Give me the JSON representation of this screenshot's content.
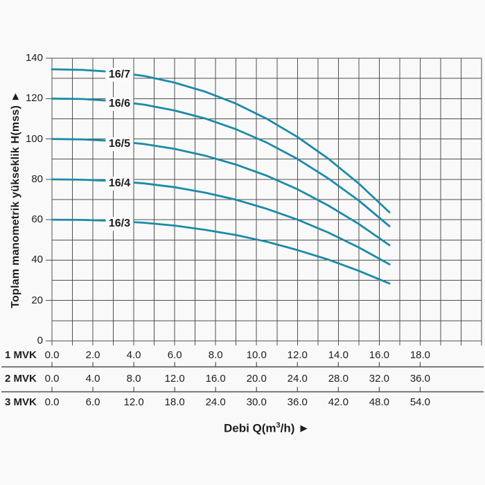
{
  "y_axis": {
    "title": "Toplam manometrik yükseklik H(mss) ►",
    "tick_labels": [
      "0",
      "20",
      "40",
      "60",
      "80",
      "100",
      "120",
      "140"
    ]
  },
  "x_axis": {
    "label_prefix": "Debi Q(m",
    "label_sup": "3",
    "label_suffix": "/h) ►"
  },
  "colors": {
    "curve": "#1b8aa8",
    "grid": "#4e4e4e",
    "text": "#1d1d1d",
    "background": "#f9f9f9"
  },
  "chart_data": {
    "type": "line",
    "title": "",
    "xlabel": "Debi Q(m3/h)",
    "ylabel": "Toplam manometrik yükseklik H(mss)",
    "grid": "on",
    "ylim": [
      0,
      140
    ],
    "y_gridline_step": 10,
    "y_label_step": 20,
    "x_grid_range": [
      0,
      21
    ],
    "x_gridline_step": 1,
    "x_major_tick_values": [
      0,
      2,
      4,
      6,
      8,
      10,
      12,
      14,
      16,
      18
    ],
    "legend_position": "labels-on-curves",
    "series": [
      {
        "name": "16/7",
        "label_q": 3.3,
        "label_h": 131.8,
        "points": [
          [
            0,
            134.5
          ],
          [
            1.5,
            134.2
          ],
          [
            3,
            133.2
          ],
          [
            4.5,
            131.2
          ],
          [
            6,
            127.9
          ],
          [
            7.5,
            123.4
          ],
          [
            9,
            117.5
          ],
          [
            10.5,
            110.0
          ],
          [
            12,
            101.0
          ],
          [
            13.5,
            90.3
          ],
          [
            15,
            77.9
          ],
          [
            16.5,
            63.7
          ]
        ]
      },
      {
        "name": "16/6",
        "label_q": 3.3,
        "label_h": 117.4,
        "points": [
          [
            0,
            120.0
          ],
          [
            1.5,
            119.8
          ],
          [
            3,
            118.8
          ],
          [
            4.5,
            117.0
          ],
          [
            6,
            114.1
          ],
          [
            7.5,
            110.1
          ],
          [
            9,
            104.8
          ],
          [
            10.5,
            98.2
          ],
          [
            12,
            90.1
          ],
          [
            13.5,
            80.5
          ],
          [
            15,
            69.5
          ],
          [
            16.5,
            56.8
          ]
        ]
      },
      {
        "name": "16/5",
        "label_q": 3.3,
        "label_h": 97.6,
        "points": [
          [
            0,
            100.0
          ],
          [
            1.5,
            99.8
          ],
          [
            3,
            99.0
          ],
          [
            4.5,
            97.5
          ],
          [
            6,
            95.1
          ],
          [
            7.5,
            91.7
          ],
          [
            9,
            87.3
          ],
          [
            10.5,
            81.8
          ],
          [
            12,
            75.1
          ],
          [
            13.5,
            67.1
          ],
          [
            15,
            57.9
          ],
          [
            16.5,
            47.4
          ]
        ]
      },
      {
        "name": "16/4",
        "label_q": 3.3,
        "label_h": 77.8,
        "points": [
          [
            0,
            80.0
          ],
          [
            1.5,
            79.8
          ],
          [
            3,
            79.2
          ],
          [
            4.5,
            78.0
          ],
          [
            6,
            76.1
          ],
          [
            7.5,
            73.4
          ],
          [
            9,
            69.9
          ],
          [
            10.5,
            65.4
          ],
          [
            12,
            60.1
          ],
          [
            13.5,
            53.7
          ],
          [
            15,
            46.3
          ],
          [
            16.5,
            37.9
          ]
        ]
      },
      {
        "name": "16/3",
        "label_q": 3.3,
        "label_h": 58.1,
        "points": [
          [
            0,
            60.0
          ],
          [
            1.5,
            59.9
          ],
          [
            3,
            59.4
          ],
          [
            4.5,
            58.5
          ],
          [
            6,
            57.1
          ],
          [
            7.5,
            55.0
          ],
          [
            9,
            52.4
          ],
          [
            10.5,
            49.1
          ],
          [
            12,
            45.0
          ],
          [
            13.5,
            40.3
          ],
          [
            15,
            34.7
          ],
          [
            16.5,
            28.4
          ]
        ]
      }
    ],
    "x_axis_rows": [
      {
        "label": "1 MVK",
        "values": [
          "0.0",
          "2.0",
          "4.0",
          "6.0",
          "8.0",
          "10.0",
          "12.0",
          "14.0",
          "16.0",
          "18.0"
        ]
      },
      {
        "label": "2 MVK",
        "values": [
          "0.0",
          "4.0",
          "8.0",
          "12.0",
          "16.0",
          "20.0",
          "24.0",
          "28.0",
          "32.0",
          "36.0"
        ]
      },
      {
        "label": "3 MVK",
        "values": [
          "0.0",
          "6.0",
          "12.0",
          "18.0",
          "24.0",
          "30.0",
          "36.0",
          "42.0",
          "48.0",
          "54.0"
        ]
      }
    ]
  }
}
